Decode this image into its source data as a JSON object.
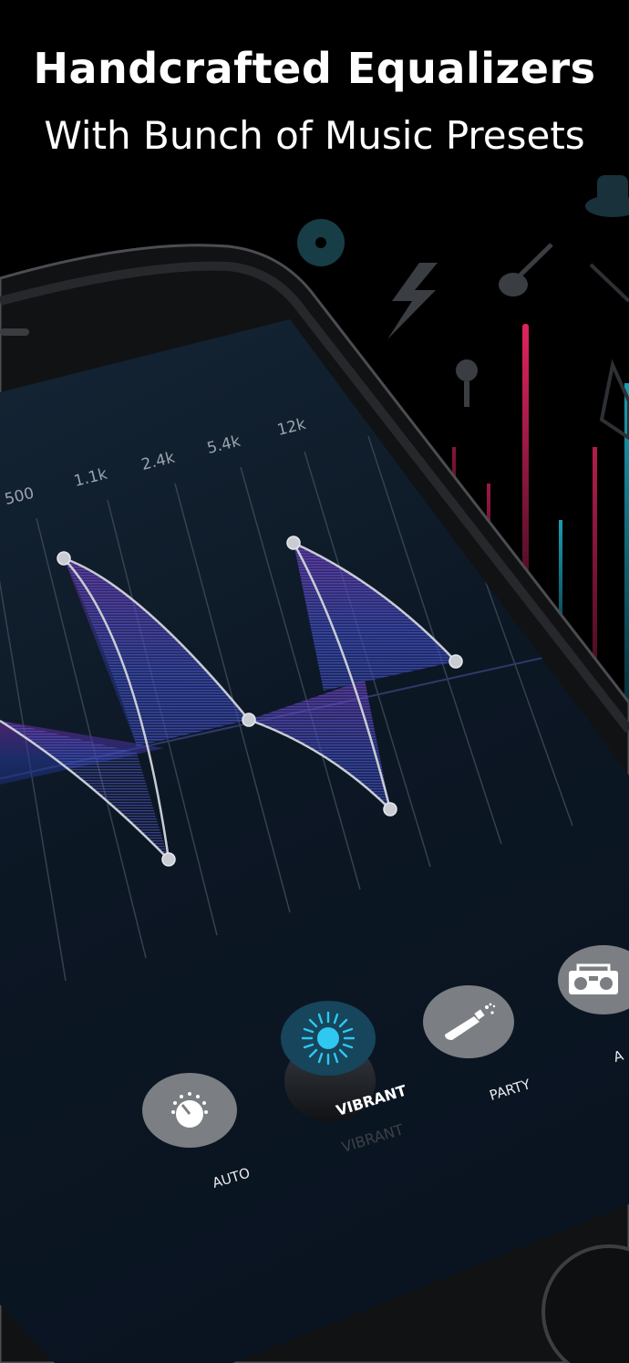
{
  "header": {
    "title": "Handcrafted Equalizers",
    "subtitle": "With Bunch of Music Presets"
  },
  "equalizer": {
    "frequency_labels": [
      "500",
      "1.1k",
      "2.4k",
      "5.4k",
      "12k"
    ],
    "accent_color": "#8c3cc8",
    "curve_color": "#c8ccd4"
  },
  "presets": {
    "items": [
      {
        "label": "AUTO",
        "icon": "knob-icon",
        "selected": false
      },
      {
        "label": "VIBRANT",
        "icon": "sun-burst-icon",
        "selected": true
      },
      {
        "label": "PARTY",
        "icon": "champagne-icon",
        "selected": false
      },
      {
        "label": "A",
        "icon": "boombox-icon",
        "selected": false
      }
    ],
    "reflection_label": "VIBRANT",
    "selected_color": "#2ec8f0"
  }
}
